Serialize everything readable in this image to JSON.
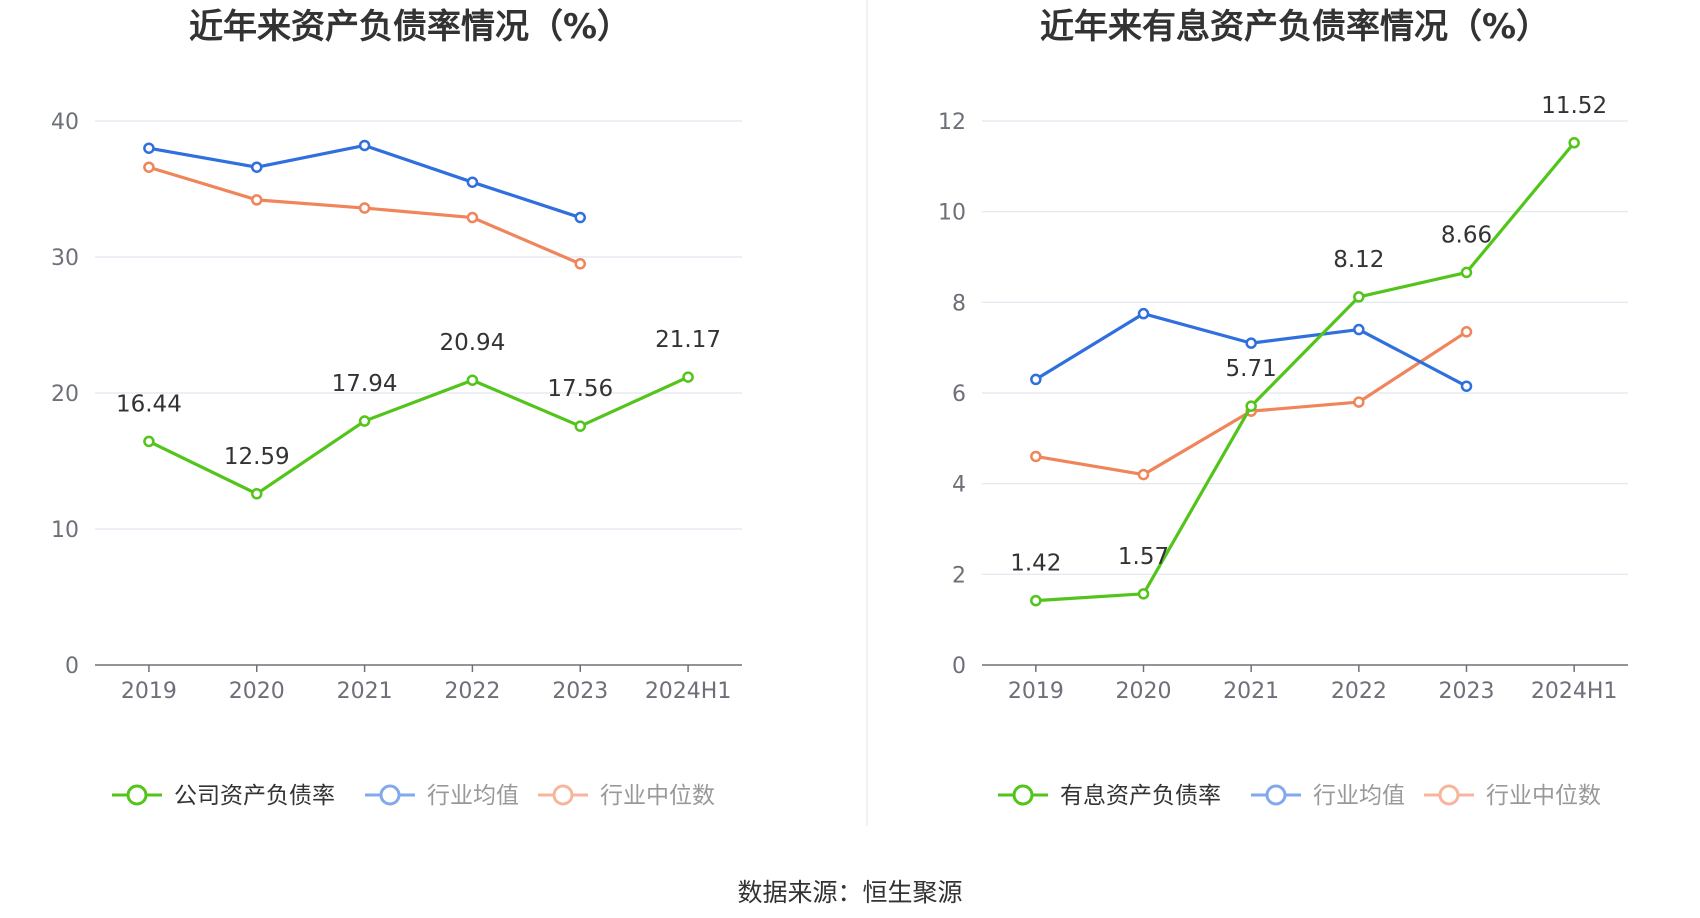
{
  "source": "数据来源：恒生聚源",
  "chart_data": [
    {
      "type": "line",
      "title": "近年来资产负债率情况（%）",
      "categories": [
        "2019",
        "2020",
        "2021",
        "2022",
        "2023",
        "2024H1"
      ],
      "ylim": [
        0,
        40
      ],
      "yticks": [
        "0",
        "10",
        "20",
        "30",
        "40"
      ],
      "grid": true,
      "legend_position": "bottom",
      "series": [
        {
          "name": "公司资产负债率",
          "color": "#52c41a",
          "labeled": true,
          "values": [
            16.44,
            12.59,
            17.94,
            20.94,
            17.56,
            21.17
          ],
          "labels": [
            "16.44",
            "12.59",
            "17.94",
            "20.94",
            "17.56",
            "21.17"
          ]
        },
        {
          "name": "行业均值",
          "color": "#2f6fde",
          "labeled": false,
          "values": [
            38.0,
            36.6,
            38.2,
            35.5,
            32.9,
            null
          ]
        },
        {
          "name": "行业中位数",
          "color": "#f0845a",
          "labeled": false,
          "values": [
            36.6,
            34.2,
            33.6,
            32.9,
            29.5,
            null
          ]
        }
      ]
    },
    {
      "type": "line",
      "title": "近年来有息资产负债率情况（%）",
      "categories": [
        "2019",
        "2020",
        "2021",
        "2022",
        "2023",
        "2024H1"
      ],
      "ylim": [
        0,
        12
      ],
      "yticks": [
        "0",
        "2",
        "4",
        "6",
        "8",
        "10",
        "12"
      ],
      "grid": true,
      "legend_position": "bottom",
      "series": [
        {
          "name": "有息资产负债率",
          "color": "#52c41a",
          "labeled": true,
          "values": [
            1.42,
            1.57,
            5.71,
            8.12,
            8.66,
            11.52
          ],
          "labels": [
            "1.42",
            "1.57",
            "5.71",
            "8.12",
            "8.66",
            "11.52"
          ]
        },
        {
          "name": "行业均值",
          "color": "#2f6fde",
          "labeled": false,
          "values": [
            6.3,
            7.75,
            7.1,
            7.4,
            6.15,
            null
          ]
        },
        {
          "name": "行业中位数",
          "color": "#f0845a",
          "labeled": false,
          "values": [
            4.6,
            4.2,
            5.6,
            5.8,
            7.35,
            null
          ]
        }
      ]
    }
  ]
}
